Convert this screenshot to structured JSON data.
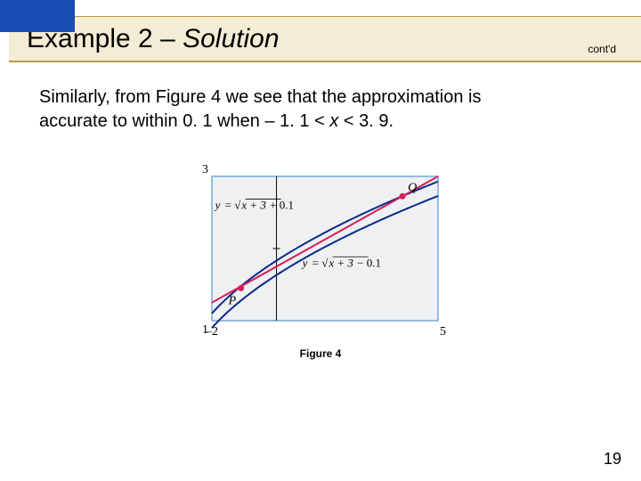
{
  "header": {
    "title_prefix": "Example 2 – ",
    "title_italic": "Solution",
    "contd": "cont'd",
    "colors": {
      "blue_block": "#1a4db3",
      "title_bg": "#f5ecd6",
      "gold_border": "#b59a4a"
    }
  },
  "body": {
    "line1": "Similarly, from Figure 4 we see that the approximation is",
    "line2_a": "accurate to within 0. 1 when – 1. 1 < ",
    "line2_x": "x",
    "line2_b": " < 3. 9."
  },
  "figure": {
    "caption": "Figure 4",
    "type": "line",
    "background_color": "#eef0f2",
    "axis_color": "#000000",
    "box_color": "#7aa7d9",
    "curve_upper_color": "#0a2a8a",
    "curve_lower_color": "#0a2a8a",
    "tangent_color": "#d81e5b",
    "point_color": "#d81e5b",
    "point_fill": "#d81e5b",
    "xlim": [
      -2,
      5
    ],
    "ylim": [
      1,
      3
    ],
    "tick_labels": {
      "x_left": "–2",
      "x_right": "5",
      "y_bottom": "1",
      "y_top": "3"
    },
    "eq_upper": "y = √(x + 3) + 0.1",
    "eq_lower": "y = √(x + 3) − 0.1",
    "P_label": "P",
    "Q_label": "Q",
    "points": {
      "P": {
        "x": -1.1,
        "y": 1.45
      },
      "Q": {
        "x": 3.9,
        "y": 2.725
      }
    },
    "line_width_curve": 2,
    "line_width_tangent": 2,
    "font_size_labels": 14,
    "font_size_ticks": 14
  },
  "page_number": "19"
}
